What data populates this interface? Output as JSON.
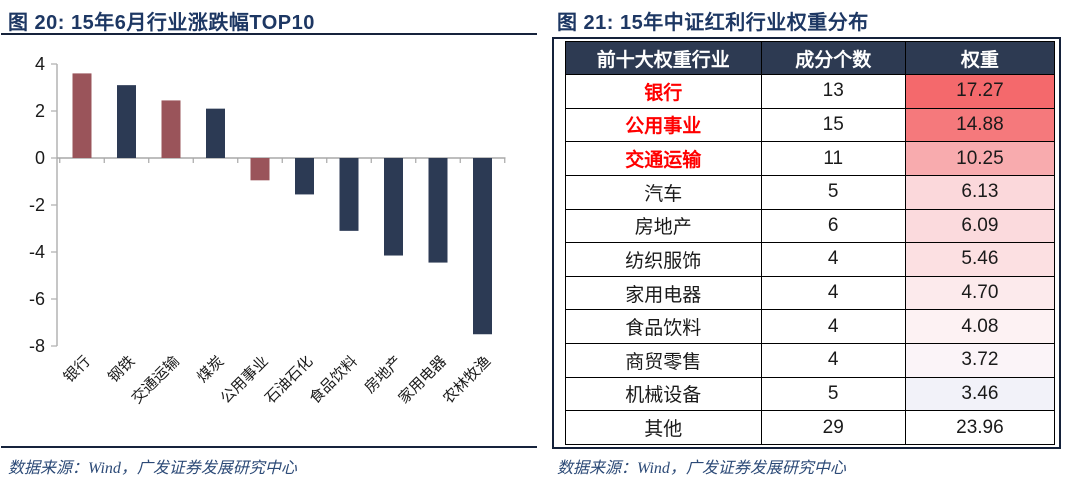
{
  "left_figure": {
    "title": "图 20:  15年6月行业涨跌幅TOP10",
    "source": "数据来源：Wind，广发证券发展研究中心"
  },
  "right_figure": {
    "title": "图 21:  15年中证红利行业权重分布",
    "source": "数据来源：Wind，广发证券发展研究中心",
    "table": {
      "headers": [
        "前十大权重行业",
        "成分个数",
        "权重"
      ],
      "rows": [
        {
          "industry": "银行",
          "count": "13",
          "weight": "17.27",
          "highlight": true,
          "weight_bg": "#f4696c"
        },
        {
          "industry": "公用事业",
          "count": "15",
          "weight": "14.88",
          "highlight": true,
          "weight_bg": "#f5797c"
        },
        {
          "industry": "交通运输",
          "count": "11",
          "weight": "10.25",
          "highlight": true,
          "weight_bg": "#f8abae"
        },
        {
          "industry": "汽车",
          "count": "5",
          "weight": "6.13",
          "highlight": false,
          "weight_bg": "#fbd8db"
        },
        {
          "industry": "房地产",
          "count": "6",
          "weight": "6.09",
          "highlight": false,
          "weight_bg": "#fbdadd"
        },
        {
          "industry": "纺织服饰",
          "count": "4",
          "weight": "5.46",
          "highlight": false,
          "weight_bg": "#fce0e2"
        },
        {
          "industry": "家用电器",
          "count": "4",
          "weight": "4.70",
          "highlight": false,
          "weight_bg": "#fceaec"
        },
        {
          "industry": "食品饮料",
          "count": "4",
          "weight": "4.08",
          "highlight": false,
          "weight_bg": "#fdf2f3"
        },
        {
          "industry": "商贸零售",
          "count": "4",
          "weight": "3.72",
          "highlight": false,
          "weight_bg": "#fbf4f8"
        },
        {
          "industry": "机械设备",
          "count": "5",
          "weight": "3.46",
          "highlight": false,
          "weight_bg": "#f2f2f9"
        },
        {
          "industry": "其他",
          "count": "29",
          "weight": "23.96",
          "highlight": false,
          "weight_bg": "#ffffff"
        }
      ]
    }
  },
  "chart_data": {
    "type": "bar",
    "title": "图 20:  15年6月行业涨跌幅TOP10",
    "categories": [
      "银行",
      "钢铁",
      "交通运输",
      "煤炭",
      "公用事业",
      "石油石化",
      "食品饮料",
      "房地产",
      "家用电器",
      "农林牧渔"
    ],
    "values": [
      3.6,
      3.1,
      2.45,
      2.1,
      -0.95,
      -1.55,
      -3.1,
      -4.15,
      -4.45,
      -7.5
    ],
    "bar_colors": [
      "#9a545a",
      "#2c3a54",
      "#9a545a",
      "#2c3a54",
      "#9a545a",
      "#2c3a54",
      "#2c3a54",
      "#2c3a54",
      "#2c3a54",
      "#2c3a54"
    ],
    "xlabel": "",
    "ylabel": "",
    "ylim": [
      -8,
      4
    ],
    "yticks": [
      4,
      2,
      0,
      -2,
      -4,
      -6,
      -8
    ],
    "grid": false,
    "legend": "none"
  },
  "colors": {
    "accent_navy": "#2d3a52",
    "accent_maroon": "#9a545a",
    "highlight_red": "#ff0000",
    "rule": "#16233c",
    "title_text": "#1d3763",
    "source_text": "#2c4a77",
    "axis_line": "#b3b3b3"
  }
}
